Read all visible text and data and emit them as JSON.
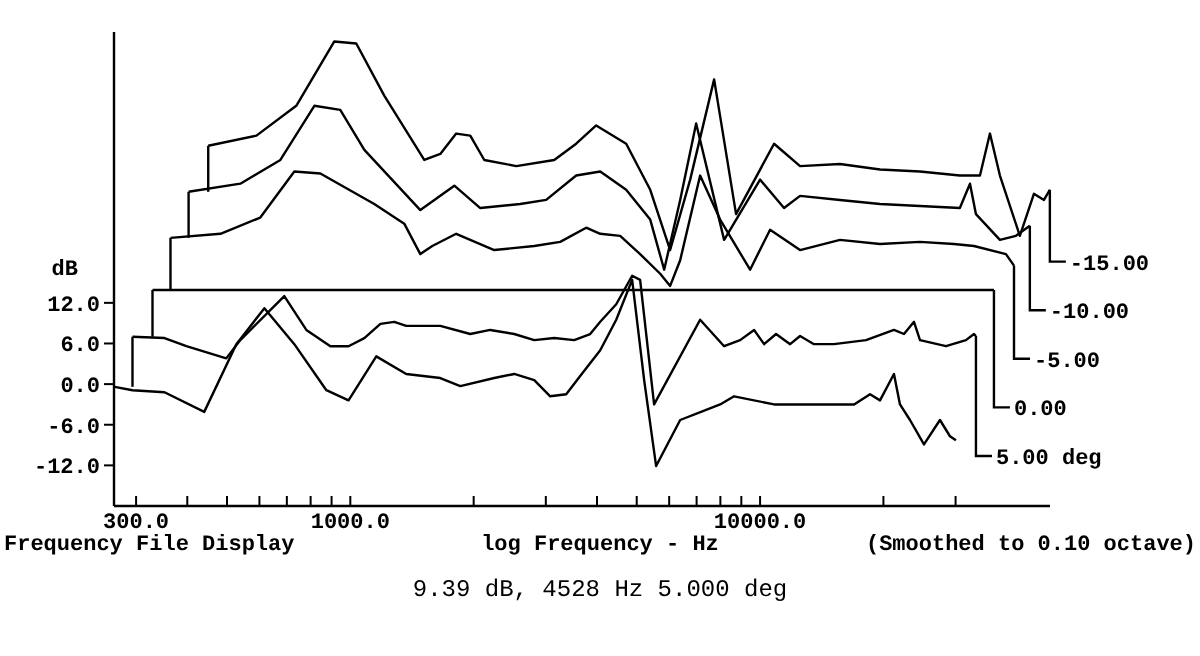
{
  "chart_data": {
    "type": "line",
    "xlabel": "log Frequency - Hz",
    "ylabel": "dB",
    "log": "x",
    "grid": false,
    "marker": "none",
    "line_style": "solid",
    "xlim": [
      265,
      51000
    ],
    "ylim": [
      -18,
      52
    ],
    "xticks": [
      {
        "value": 300,
        "label": "300.0"
      },
      {
        "value": 400,
        "label": null
      },
      {
        "value": 500,
        "label": null
      },
      {
        "value": 600,
        "label": null
      },
      {
        "value": 700,
        "label": null
      },
      {
        "value": 800,
        "label": null
      },
      {
        "value": 900,
        "label": null
      },
      {
        "value": 1000,
        "label": "1000.0"
      },
      {
        "value": 2000,
        "label": null
      },
      {
        "value": 3000,
        "label": null
      },
      {
        "value": 4000,
        "label": null
      },
      {
        "value": 5000,
        "label": null
      },
      {
        "value": 6000,
        "label": null
      },
      {
        "value": 7000,
        "label": null
      },
      {
        "value": 8000,
        "label": null
      },
      {
        "value": 9000,
        "label": null
      },
      {
        "value": 10000,
        "label": "10000.0"
      },
      {
        "value": 20000,
        "label": null
      },
      {
        "value": 30000,
        "label": null
      }
    ],
    "yticks": [
      {
        "value": 12,
        "label": "12.0"
      },
      {
        "value": 6,
        "label": "6.0"
      },
      {
        "value": 0,
        "label": "0.0"
      },
      {
        "value": -6,
        "label": "-6.0"
      },
      {
        "value": -12,
        "label": "-12.0"
      }
    ],
    "series": [
      {
        "color": "#000000",
        "x": [
          266,
          294,
          352,
          440,
          527,
          617,
          730,
          874,
          990,
          1157,
          1369,
          1658,
          1855,
          2245,
          2512,
          2811,
          3075,
          3364,
          3639,
          4073,
          4456,
          4873,
          5213,
          5576,
          6383,
          7385,
          7990,
          8642,
          10818,
          14010,
          16960,
          18550,
          19620,
          21220,
          21950,
          23220,
          25120,
          27480,
          29070,
          30060
        ],
        "values": [
          -0.4,
          -0.9,
          -1.2,
          -4.1,
          5.9,
          11.2,
          5.9,
          -0.9,
          -2.4,
          4.1,
          1.5,
          0.9,
          -0.3,
          0.9,
          1.5,
          0.6,
          -1.8,
          -1.5,
          1.2,
          5.0,
          9.5,
          15.4,
          0.6,
          -12.1,
          -5.3,
          -3.8,
          -3.0,
          -1.8,
          -3.0,
          -3.0,
          -3.0,
          -1.5,
          -2.4,
          1.5,
          -3.0,
          -5.3,
          -8.9,
          -5.3,
          -7.7,
          -8.3
        ]
      },
      {
        "name": "5.00 deg",
        "color": "#000000",
        "x": [
          294,
          352,
          398,
          498,
          539,
          690,
          781,
          894,
          990,
          1082,
          1184,
          1280,
          1369,
          1658,
          1962,
          2195,
          2512,
          2811,
          3145,
          3518,
          3849,
          4073,
          4456,
          4873,
          5096,
          5513,
          7140,
          8170,
          8940,
          9670,
          10230,
          10940,
          11840,
          12520,
          13540,
          15150,
          18140,
          21220,
          22450,
          23750,
          24560,
          28430,
          31800,
          33270,
          33640
        ],
        "values": [
          7.0,
          6.8,
          5.6,
          3.8,
          6.5,
          13.0,
          8.0,
          5.6,
          5.6,
          6.8,
          8.9,
          9.2,
          8.6,
          8.6,
          7.4,
          8.0,
          7.4,
          6.5,
          6.8,
          6.5,
          7.4,
          9.2,
          11.8,
          16.0,
          15.4,
          -3.0,
          9.5,
          5.6,
          6.5,
          8.0,
          5.9,
          7.4,
          5.9,
          7.1,
          5.9,
          5.9,
          6.5,
          8.0,
          7.4,
          9.2,
          6.5,
          5.6,
          6.5,
          7.4,
          7.1
        ]
      },
      {
        "name": "0.00",
        "color": "#000000",
        "x": [
          329,
          37220
        ],
        "values": [
          13.9,
          13.9
        ]
      },
      {
        "name": "-5.00",
        "color": "#000000",
        "x": [
          364,
          482,
          603,
          730,
          845,
          1144,
          1354,
          1482,
          1585,
          1813,
          2245,
          2811,
          3253,
          3764,
          4073,
          4556,
          5096,
          5705,
          6033,
          6383,
          7140,
          7990,
          9454,
          10578,
          12520,
          15670,
          19620,
          24560,
          29730,
          33270,
          39810,
          41660
        ],
        "values": [
          21.6,
          22.2,
          24.6,
          31.4,
          31.1,
          26.6,
          23.7,
          19.2,
          20.4,
          22.2,
          19.8,
          20.4,
          21.0,
          23.1,
          22.2,
          21.9,
          19.2,
          16.3,
          14.5,
          18.3,
          30.8,
          24.3,
          16.9,
          22.8,
          19.8,
          21.3,
          20.7,
          21.0,
          20.7,
          20.4,
          19.2,
          17.5
        ]
      },
      {
        "name": "-10.00",
        "color": "#000000",
        "x": [
          403,
          539,
          675,
          817,
          945,
          1082,
          1482,
          1794,
          2076,
          2598,
          3006,
          3558,
          4073,
          4712,
          5394,
          5834,
          6383,
          6982,
          8170,
          10000,
          11442,
          12520,
          15670,
          19620,
          24560,
          30730,
          32530,
          33640,
          38490,
          42110,
          45540
        ],
        "values": [
          28.4,
          29.6,
          33.1,
          41.1,
          40.5,
          34.6,
          25.7,
          29.3,
          26.0,
          26.6,
          27.2,
          30.8,
          31.4,
          28.7,
          24.3,
          16.9,
          27.2,
          38.5,
          21.3,
          30.2,
          26.0,
          27.8,
          27.2,
          26.6,
          26.3,
          26.0,
          29.6,
          25.1,
          21.3,
          21.9,
          23.4
        ]
      },
      {
        "name": "-15.00",
        "color": "#000000",
        "x": [
          450,
          590,
          738,
          914,
          1034,
          1210,
          1515,
          1658,
          1813,
          1962,
          2123,
          2541,
          3145,
          3558,
          3981,
          4712,
          5394,
          6033,
          6752,
          7724,
          8738,
          10818,
          12520,
          15670,
          19620,
          24560,
          30730,
          34410,
          36390,
          38490,
          43050,
          46590,
          49290,
          50960
        ],
        "values": [
          35.2,
          36.7,
          41.1,
          50.6,
          50.3,
          42.6,
          33.1,
          34.0,
          37.0,
          36.7,
          33.1,
          32.2,
          33.1,
          35.5,
          38.2,
          35.5,
          28.7,
          19.8,
          30.2,
          45.0,
          25.1,
          35.5,
          32.2,
          32.5,
          31.7,
          31.4,
          30.8,
          30.8,
          37.0,
          30.8,
          21.9,
          28.1,
          27.2,
          28.7
        ]
      }
    ],
    "annotations": [
      "Frequency File Display",
      "(Smoothed to 0.10 octave)",
      "9.39 dB, 4528 Hz 5.000 deg"
    ]
  }
}
